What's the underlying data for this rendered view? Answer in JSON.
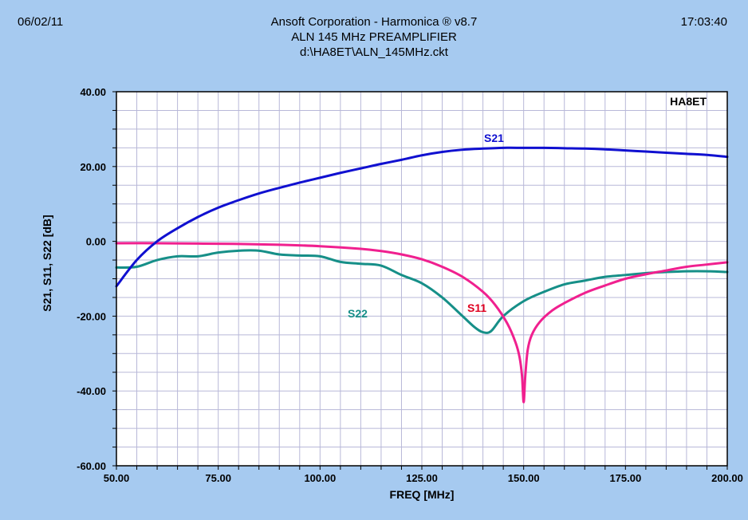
{
  "header": {
    "date": "06/02/11",
    "title": "Ansoft Corporation - Harmonica ® v8.7",
    "subtitle": "ALN 145 MHz PREAMPLIFIER",
    "file": "d:\\HA8ET\\ALN_145MHz.ckt",
    "time": "17:03:40"
  },
  "chart_data": {
    "type": "line",
    "xlabel": "FREQ [MHz]",
    "ylabel": "S21, S11, S22 [dB]",
    "xlim": [
      50,
      200
    ],
    "ylim": [
      -60,
      40
    ],
    "x_ticks": [
      "50.00",
      "75.00",
      "100.00",
      "125.00",
      "150.00",
      "175.00",
      "200.00"
    ],
    "y_ticks": [
      "40.00",
      "20.00",
      "0.00",
      "-20.00",
      "-40.00",
      "-60.00"
    ],
    "grid": true,
    "annotation": "HA8ET",
    "series": [
      {
        "name": "S21",
        "color": "#1010d0",
        "x": [
          50,
          55,
          60,
          65,
          70,
          75,
          80,
          85,
          90,
          95,
          100,
          105,
          110,
          115,
          120,
          125,
          130,
          135,
          140,
          145,
          150,
          155,
          160,
          165,
          170,
          175,
          180,
          185,
          190,
          195,
          200
        ],
        "y": [
          -12,
          -5,
          0,
          3.5,
          6.5,
          9,
          11,
          12.8,
          14.3,
          15.7,
          17,
          18.3,
          19.5,
          20.7,
          21.8,
          23,
          23.9,
          24.5,
          24.8,
          25,
          25,
          25,
          24.9,
          24.8,
          24.6,
          24.3,
          24,
          23.7,
          23.4,
          23.1,
          22.6
        ]
      },
      {
        "name": "S11",
        "color": "#f0208f",
        "x": [
          50,
          60,
          70,
          80,
          90,
          100,
          110,
          115,
          120,
          125,
          130,
          135,
          140,
          143,
          146,
          148,
          149,
          149.6,
          150,
          150.4,
          151,
          152,
          154,
          157,
          160,
          165,
          170,
          175,
          180,
          185,
          190,
          195,
          200
        ],
        "y": [
          -0.5,
          -0.5,
          -0.6,
          -0.7,
          -0.9,
          -1.3,
          -2,
          -2.6,
          -3.5,
          -4.8,
          -6.8,
          -9.5,
          -13.5,
          -17,
          -22,
          -27,
          -31,
          -36,
          -43,
          -36,
          -29,
          -25,
          -21.5,
          -18.5,
          -16.5,
          -13.8,
          -11.8,
          -10,
          -8.8,
          -7.8,
          -6.8,
          -6.2,
          -5.6
        ]
      },
      {
        "name": "S22",
        "color": "#168f88",
        "x": [
          50,
          55,
          60,
          65,
          70,
          75,
          80,
          85,
          90,
          95,
          100,
          105,
          110,
          115,
          120,
          125,
          130,
          135,
          138,
          140,
          142,
          145,
          150,
          155,
          160,
          165,
          170,
          175,
          180,
          185,
          190,
          195,
          200
        ],
        "y": [
          -7,
          -6.8,
          -5,
          -4,
          -4,
          -3,
          -2.5,
          -2.5,
          -3.5,
          -3.8,
          -4,
          -5.5,
          -6,
          -6.5,
          -9,
          -11.2,
          -15,
          -20,
          -23,
          -24.3,
          -24,
          -20,
          -16,
          -13.5,
          -11.5,
          -10.5,
          -9.5,
          -9,
          -8.5,
          -8.2,
          -8,
          -8,
          -8.2
        ]
      }
    ]
  }
}
